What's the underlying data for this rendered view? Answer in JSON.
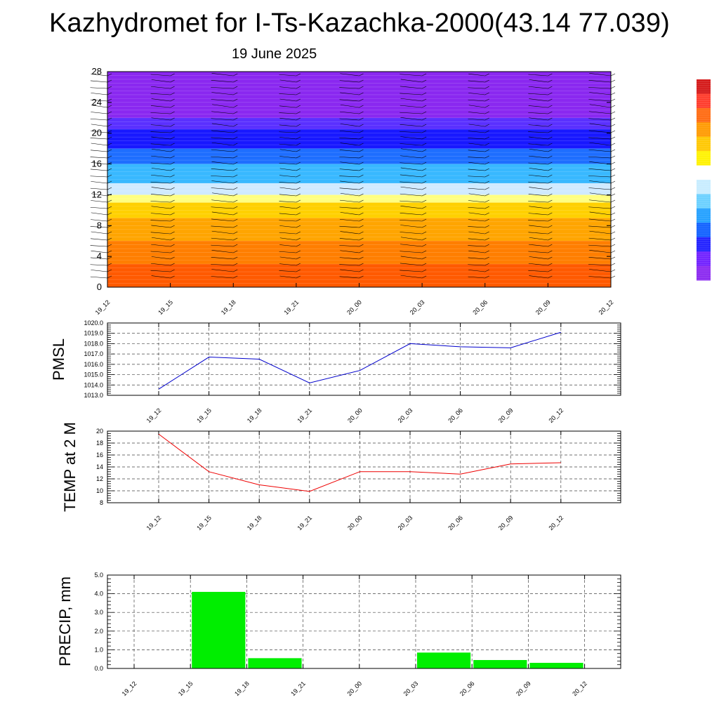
{
  "header": {
    "title": "Kazhydromet for I-Ts-Kazachka-2000(43.14 77.039)",
    "date": "19 June 2025"
  },
  "chart_data": [
    {
      "type": "heatmap",
      "name": "vertical-profile",
      "ylim": [
        0,
        28
      ],
      "yticks": [
        "0",
        "4",
        "8",
        "12",
        "16",
        "20",
        "24",
        "28"
      ],
      "categories": [
        "19_12",
        "19_15",
        "19_18",
        "19_21",
        "20_00",
        "20_03",
        "20_06",
        "20_09",
        "20_12"
      ],
      "color_bands": [
        {
          "from": 0,
          "to": 3,
          "color": "#ff5a00"
        },
        {
          "from": 3,
          "to": 6,
          "color": "#ff7e00"
        },
        {
          "from": 6,
          "to": 9,
          "color": "#ffa500"
        },
        {
          "from": 9,
          "to": 11,
          "color": "#ffd000"
        },
        {
          "from": 11,
          "to": 12,
          "color": "#ffff80"
        },
        {
          "from": 12,
          "to": 13.5,
          "color": "#cfeaff"
        },
        {
          "from": 13.5,
          "to": 16,
          "color": "#38b8ff"
        },
        {
          "from": 16,
          "to": 18,
          "color": "#1e6eff"
        },
        {
          "from": 18,
          "to": 20.5,
          "color": "#1818ff"
        },
        {
          "from": 20.5,
          "to": 22,
          "color": "#5a30ff"
        },
        {
          "from": 22,
          "to": 28,
          "color": "#8a28f0"
        }
      ],
      "has_wind_barbs": true,
      "colorbar": [
        "#d41818",
        "#ff3a2a",
        "#ff6a10",
        "#ff9a00",
        "#ffc800",
        "#fff200",
        "#ffffff",
        "#c8ecff",
        "#6ad0ff",
        "#22a0ff",
        "#1060ff",
        "#2020ff",
        "#7020ff",
        "#8a28f0"
      ]
    },
    {
      "type": "line",
      "name": "pmsl",
      "ylabel": "PMSL",
      "categories": [
        "19_12",
        "19_15",
        "19_18",
        "19_21",
        "20_00",
        "20_03",
        "20_06",
        "20_09",
        "20_12"
      ],
      "values": [
        1013.6,
        1016.7,
        1016.5,
        1014.2,
        1015.4,
        1018.0,
        1017.7,
        1017.6,
        1019.1
      ],
      "ylim": [
        1013.0,
        1020.0
      ],
      "yticks": [
        "1013.0",
        "1014.0",
        "1015.0",
        "1016.0",
        "1017.0",
        "1018.0",
        "1019.0",
        "1020.0"
      ],
      "color": "#0000cc",
      "grid": true
    },
    {
      "type": "line",
      "name": "temp-2m",
      "ylabel": "TEMP at 2 M",
      "categories": [
        "19_12",
        "19_15",
        "19_18",
        "19_21",
        "20_00",
        "20_03",
        "20_06",
        "20_09",
        "20_12"
      ],
      "values": [
        19.5,
        13.2,
        11.0,
        9.9,
        13.2,
        13.2,
        12.8,
        14.5,
        14.7
      ],
      "ylim": [
        8,
        20
      ],
      "yticks": [
        "8",
        "10",
        "12",
        "14",
        "16",
        "18",
        "20"
      ],
      "color": "#ee0000",
      "grid": true
    },
    {
      "type": "bar",
      "name": "precip",
      "ylabel": "PRECIP, mm",
      "categories": [
        "19_12",
        "19_15",
        "19_18",
        "19_21",
        "20_00",
        "20_03",
        "20_06",
        "20_09",
        "20_12"
      ],
      "values": [
        0,
        4.1,
        0.55,
        0,
        0,
        0.85,
        0.45,
        0.3,
        0
      ],
      "ylim": [
        0,
        5.0
      ],
      "yticks": [
        "0.0",
        "1.0",
        "2.0",
        "3.0",
        "4.0",
        "5.0"
      ],
      "color": "#00ee00",
      "grid": true
    }
  ]
}
